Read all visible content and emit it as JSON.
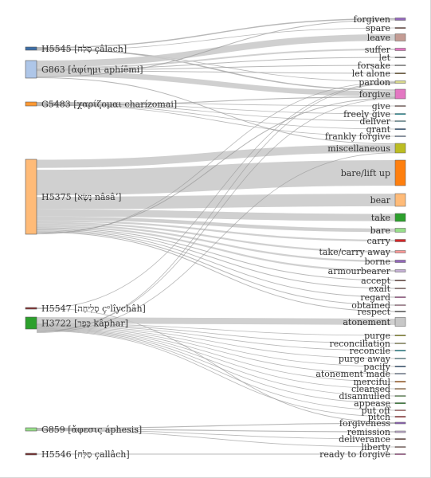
{
  "diagram": {
    "type": "sankey",
    "sources": [
      {
        "id": "H5545",
        "label": "H5545 [סָלַח çâlach]",
        "color": "#3d6fa8",
        "value": 3
      },
      {
        "id": "G863",
        "label": "G863 [ἀφίημι aphíēmi]",
        "color": "#aec6e8",
        "value": 14
      },
      {
        "id": "G5483",
        "label": "G5483 [χαρίζομαι charízomai]",
        "color": "#ff9933",
        "value": 3
      },
      {
        "id": "H5375",
        "label": "H5375 [נָשָׂא nâsâʼ]",
        "color": "#ffbb78",
        "value": 60
      },
      {
        "id": "H5547",
        "label": "H5547 [סְלִיחָה çᵉlîychâh]",
        "color": "#8c2d2d",
        "value": 0.6
      },
      {
        "id": "H3722",
        "label": "H3722 [כָּפַר kâphar]",
        "color": "#2ca02c",
        "value": 9
      },
      {
        "id": "G859",
        "label": "G859 [ἄφεσις áphesis]",
        "color": "#98df8a",
        "value": 1.2
      },
      {
        "id": "H5546",
        "label": "H5546 [סַלָּח çallâch]",
        "color": "#7a2a2a",
        "value": 0.6
      }
    ],
    "targets": [
      {
        "id": "forgiven",
        "label": "forgiven",
        "color": "#9467bd",
        "value": 1
      },
      {
        "id": "spare",
        "label": "spare",
        "color": "#8c564b",
        "value": 0.5
      },
      {
        "id": "leave",
        "label": "leave",
        "color": "#c49c94",
        "value": 4
      },
      {
        "id": "suffer",
        "label": "suffer",
        "color": "#e377c2",
        "value": 1
      },
      {
        "id": "let",
        "label": "let",
        "color": "#7f7f7f",
        "value": 0.5
      },
      {
        "id": "forsake",
        "label": "forsake",
        "color": "#c7c7c7",
        "value": 0.5
      },
      {
        "id": "let-alone",
        "label": "let alone",
        "color": "#8c6d31",
        "value": 0.5
      },
      {
        "id": "pardon",
        "label": "pardon",
        "color": "#dbdb8d",
        "value": 1
      },
      {
        "id": "forgive",
        "label": "forgive",
        "color": "#e377c2",
        "value": 5
      },
      {
        "id": "give",
        "label": "give",
        "color": "#c49c94",
        "value": 0.5
      },
      {
        "id": "freely-give",
        "label": "freely give",
        "color": "#17becf",
        "value": 0.5
      },
      {
        "id": "deliver",
        "label": "deliver",
        "color": "#9edae5",
        "value": 0.5
      },
      {
        "id": "grant",
        "label": "grant",
        "color": "#3d6fa8",
        "value": 0.5
      },
      {
        "id": "frankly-forgive",
        "label": "frankly forgive",
        "color": "#aec6e8",
        "value": 0.5
      },
      {
        "id": "miscellaneous",
        "label": "miscellaneous",
        "color": "#bcbd22",
        "value": 6
      },
      {
        "id": "bare-lift-up",
        "label": "bare/lift up",
        "color": "#ff7f0e",
        "value": 16
      },
      {
        "id": "bear",
        "label": "bear",
        "color": "#ffbb78",
        "value": 7
      },
      {
        "id": "take",
        "label": "take",
        "color": "#2ca02c",
        "value": 4
      },
      {
        "id": "bare",
        "label": "bare",
        "color": "#98df8a",
        "value": 2
      },
      {
        "id": "carry",
        "label": "carry",
        "color": "#d62728",
        "value": 1
      },
      {
        "id": "take-carry-away",
        "label": "take/carry away",
        "color": "#ff9896",
        "value": 1
      },
      {
        "id": "borne",
        "label": "borne",
        "color": "#9467bd",
        "value": 1
      },
      {
        "id": "armourbearer",
        "label": "armourbearer",
        "color": "#c5b0d5",
        "value": 1
      },
      {
        "id": "accept",
        "label": "accept",
        "color": "#8c564b",
        "value": 0.5
      },
      {
        "id": "exalt",
        "label": "exalt",
        "color": "#c49c94",
        "value": 0.5
      },
      {
        "id": "regard",
        "label": "regard",
        "color": "#e377c2",
        "value": 0.5
      },
      {
        "id": "obtained",
        "label": "obtained",
        "color": "#f7b6d2",
        "value": 0.5
      },
      {
        "id": "respect",
        "label": "respect",
        "color": "#7f7f7f",
        "value": 0.5
      },
      {
        "id": "atonement",
        "label": "atonement",
        "color": "#c7c7c7",
        "value": 5
      },
      {
        "id": "purge",
        "label": "purge",
        "color": "#bcbd22",
        "value": 0.5
      },
      {
        "id": "reconciliation",
        "label": "reconciliation",
        "color": "#dbdb8d",
        "value": 0.5
      },
      {
        "id": "reconcile",
        "label": "reconcile",
        "color": "#17becf",
        "value": 0.5
      },
      {
        "id": "purge-away",
        "label": "purge away",
        "color": "#9edae5",
        "value": 0.5
      },
      {
        "id": "pacify",
        "label": "pacify",
        "color": "#3d6fa8",
        "value": 0.5
      },
      {
        "id": "atonement-made",
        "label": "atonement made",
        "color": "#aec6e8",
        "value": 0.5
      },
      {
        "id": "merciful",
        "label": "merciful",
        "color": "#ff7f0e",
        "value": 0.5
      },
      {
        "id": "cleansed",
        "label": "cleansed",
        "color": "#ffbb78",
        "value": 0.5
      },
      {
        "id": "disannulled",
        "label": "disannulled",
        "color": "#98df8a",
        "value": 0.5
      },
      {
        "id": "appease",
        "label": "appease",
        "color": "#2ca02c",
        "value": 0.5
      },
      {
        "id": "put-off",
        "label": "put off",
        "color": "#ff9896",
        "value": 0.5
      },
      {
        "id": "pitch",
        "label": "pitch",
        "color": "#d62728",
        "value": 0.5
      },
      {
        "id": "forgiveness",
        "label": "forgiveness",
        "color": "#9467bd",
        "value": 0.5
      },
      {
        "id": "remission",
        "label": "remission",
        "color": "#c5b0d5",
        "value": 0.5
      },
      {
        "id": "deliverance",
        "label": "deliverance",
        "color": "#8c564b",
        "value": 0.5
      },
      {
        "id": "liberty",
        "label": "liberty",
        "color": "#c49c94",
        "value": 0.5
      },
      {
        "id": "ready-to-forgive",
        "label": "ready to forgive",
        "color": "#e377c2",
        "value": 0.5
      }
    ],
    "links": [
      {
        "s": "H5545",
        "t": "forgiven",
        "v": 1.2
      },
      {
        "s": "H5545",
        "t": "forgive",
        "v": 1.2
      },
      {
        "s": "H5545",
        "t": "pardon",
        "v": 0.6
      },
      {
        "s": "H5545",
        "t": "spare",
        "v": 0.3
      },
      {
        "s": "G863",
        "t": "leave",
        "v": 5
      },
      {
        "s": "G863",
        "t": "suffer",
        "v": 1.2
      },
      {
        "s": "G863",
        "t": "let",
        "v": 0.6
      },
      {
        "s": "G863",
        "t": "forsake",
        "v": 0.6
      },
      {
        "s": "G863",
        "t": "let-alone",
        "v": 0.6
      },
      {
        "s": "G863",
        "t": "forgive",
        "v": 4
      },
      {
        "s": "G863",
        "t": "forgiven",
        "v": 0.6
      },
      {
        "s": "G863",
        "t": "miscellaneous",
        "v": 0.6
      },
      {
        "s": "G5483",
        "t": "give",
        "v": 0.5
      },
      {
        "s": "G5483",
        "t": "freely-give",
        "v": 0.5
      },
      {
        "s": "G5483",
        "t": "deliver",
        "v": 0.5
      },
      {
        "s": "G5483",
        "t": "grant",
        "v": 0.5
      },
      {
        "s": "G5483",
        "t": "frankly-forgive",
        "v": 0.5
      },
      {
        "s": "G5483",
        "t": "forgive",
        "v": 0.8
      },
      {
        "s": "H5375",
        "t": "miscellaneous",
        "v": 5
      },
      {
        "s": "H5375",
        "t": "bare-lift-up",
        "v": 16
      },
      {
        "s": "H5375",
        "t": "bear",
        "v": 7
      },
      {
        "s": "H5375",
        "t": "take",
        "v": 4
      },
      {
        "s": "H5375",
        "t": "bare",
        "v": 2
      },
      {
        "s": "H5375",
        "t": "carry",
        "v": 1
      },
      {
        "s": "H5375",
        "t": "take-carry-away",
        "v": 1
      },
      {
        "s": "H5375",
        "t": "borne",
        "v": 1
      },
      {
        "s": "H5375",
        "t": "armourbearer",
        "v": 1
      },
      {
        "s": "H5375",
        "t": "accept",
        "v": 0.6
      },
      {
        "s": "H5375",
        "t": "exalt",
        "v": 0.6
      },
      {
        "s": "H5375",
        "t": "regard",
        "v": 0.6
      },
      {
        "s": "H5375",
        "t": "obtained",
        "v": 0.6
      },
      {
        "s": "H5375",
        "t": "respect",
        "v": 0.6
      },
      {
        "s": "H5375",
        "t": "forgive",
        "v": 0.6
      },
      {
        "s": "H5375",
        "t": "pardon",
        "v": 0.3
      },
      {
        "s": "H5547",
        "t": "forgiveness",
        "v": 0.3
      },
      {
        "s": "H5547",
        "t": "pardon",
        "v": 0.3
      },
      {
        "s": "H3722",
        "t": "atonement",
        "v": 5
      },
      {
        "s": "H3722",
        "t": "purge",
        "v": 0.3
      },
      {
        "s": "H3722",
        "t": "reconciliation",
        "v": 0.3
      },
      {
        "s": "H3722",
        "t": "reconcile",
        "v": 0.3
      },
      {
        "s": "H3722",
        "t": "purge-away",
        "v": 0.3
      },
      {
        "s": "H3722",
        "t": "pacify",
        "v": 0.3
      },
      {
        "s": "H3722",
        "t": "atonement-made",
        "v": 0.3
      },
      {
        "s": "H3722",
        "t": "merciful",
        "v": 0.3
      },
      {
        "s": "H3722",
        "t": "cleansed",
        "v": 0.3
      },
      {
        "s": "H3722",
        "t": "disannulled",
        "v": 0.3
      },
      {
        "s": "H3722",
        "t": "appease",
        "v": 0.3
      },
      {
        "s": "H3722",
        "t": "put-off",
        "v": 0.3
      },
      {
        "s": "H3722",
        "t": "pitch",
        "v": 0.3
      },
      {
        "s": "H3722",
        "t": "forgive",
        "v": 0.3
      },
      {
        "s": "H3722",
        "t": "pardon",
        "v": 0.3
      },
      {
        "s": "H3722",
        "t": "miscellaneous",
        "v": 0.3
      },
      {
        "s": "G859",
        "t": "forgiveness",
        "v": 0.4
      },
      {
        "s": "G859",
        "t": "remission",
        "v": 0.4
      },
      {
        "s": "G859",
        "t": "deliverance",
        "v": 0.3
      },
      {
        "s": "G859",
        "t": "liberty",
        "v": 0.3
      },
      {
        "s": "H5546",
        "t": "ready-to-forgive",
        "v": 0.3
      }
    ]
  }
}
